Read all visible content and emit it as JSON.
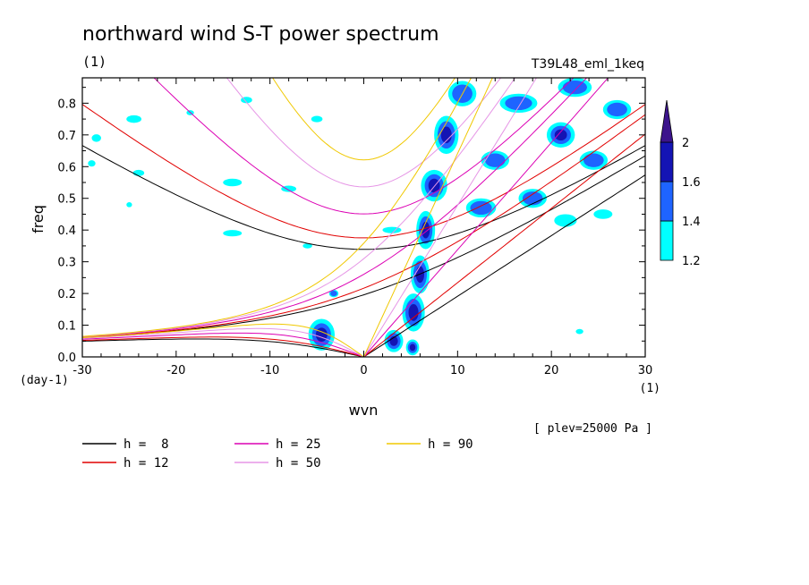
{
  "chart_data": {
    "type": "contour",
    "title": "northward wind S-T power spectrum",
    "subtitle": "(1)",
    "run_label": "T39L48_eml_1keq",
    "xlabel": "wvn",
    "ylabel": "freq",
    "x_unit": "(1)",
    "y_unit": "(day-1)",
    "level_label": "[ plev=25000 Pa ]",
    "xlim": [
      -30,
      30
    ],
    "ylim": [
      0.0,
      0.88
    ],
    "x_ticks": [
      -30,
      -20,
      -10,
      0,
      10,
      20,
      30
    ],
    "x_tick_labels": [
      "-30",
      "-20",
      "-10",
      "0",
      "10",
      "20",
      "30"
    ],
    "y_ticks": [
      0.0,
      0.1,
      0.2,
      0.3,
      0.4,
      0.5,
      0.6,
      0.7,
      0.8
    ],
    "y_tick_labels": [
      "0.0",
      "0.1",
      "0.2",
      "0.3",
      "0.4",
      "0.5",
      "0.6",
      "0.7",
      "0.8"
    ],
    "colorbar": {
      "levels": [
        "1.2",
        "1.4",
        "1.6",
        "2"
      ],
      "colors": [
        "#00ffff",
        "#1e64ff",
        "#1414b4",
        "#3c148c"
      ]
    },
    "dispersion_curves": [
      {
        "label": "h =  8",
        "h": 8,
        "color": "#000000"
      },
      {
        "label": "h = 12",
        "h": 12,
        "color": "#e10000"
      },
      {
        "label": "h = 25",
        "h": 25,
        "color": "#dc00b4"
      },
      {
        "label": "h = 50",
        "h": 50,
        "color": "#e696e6"
      },
      {
        "label": "h = 90",
        "h": 90,
        "color": "#f0c800"
      }
    ],
    "power_blobs": [
      {
        "x": -4.5,
        "y": 0.07,
        "rx": 1.4,
        "ry": 0.05,
        "level": 2
      },
      {
        "x": -3.2,
        "y": 0.2,
        "rx": 0.5,
        "ry": 0.012,
        "level": 1
      },
      {
        "x": 3.2,
        "y": 0.05,
        "rx": 1.0,
        "ry": 0.035,
        "level": 2
      },
      {
        "x": 5.2,
        "y": 0.03,
        "rx": 0.7,
        "ry": 0.025,
        "level": 2
      },
      {
        "x": 5.3,
        "y": 0.14,
        "rx": 1.2,
        "ry": 0.06,
        "level": 2
      },
      {
        "x": 6.0,
        "y": 0.26,
        "rx": 1.0,
        "ry": 0.06,
        "level": 2
      },
      {
        "x": 6.6,
        "y": 0.4,
        "rx": 1.0,
        "ry": 0.06,
        "level": 2
      },
      {
        "x": 7.5,
        "y": 0.54,
        "rx": 1.4,
        "ry": 0.05,
        "level": 2
      },
      {
        "x": 8.8,
        "y": 0.7,
        "rx": 1.3,
        "ry": 0.06,
        "level": 2
      },
      {
        "x": 10.5,
        "y": 0.83,
        "rx": 1.5,
        "ry": 0.04,
        "level": 1
      },
      {
        "x": 12.5,
        "y": 0.47,
        "rx": 1.6,
        "ry": 0.03,
        "level": 1
      },
      {
        "x": 14.0,
        "y": 0.62,
        "rx": 1.5,
        "ry": 0.03,
        "level": 1
      },
      {
        "x": 16.5,
        "y": 0.8,
        "rx": 2.0,
        "ry": 0.03,
        "level": 1
      },
      {
        "x": 18.0,
        "y": 0.5,
        "rx": 1.5,
        "ry": 0.03,
        "level": 1
      },
      {
        "x": 21.0,
        "y": 0.7,
        "rx": 1.5,
        "ry": 0.04,
        "level": 2
      },
      {
        "x": 22.5,
        "y": 0.85,
        "rx": 1.8,
        "ry": 0.03,
        "level": 1
      },
      {
        "x": 24.5,
        "y": 0.62,
        "rx": 1.5,
        "ry": 0.03,
        "level": 1
      },
      {
        "x": 27.0,
        "y": 0.78,
        "rx": 1.5,
        "ry": 0.03,
        "level": 1
      },
      {
        "x": 21.5,
        "y": 0.43,
        "rx": 1.2,
        "ry": 0.02,
        "level": 0
      },
      {
        "x": 25.5,
        "y": 0.45,
        "rx": 1.0,
        "ry": 0.015,
        "level": 0
      },
      {
        "x": -28.5,
        "y": 0.69,
        "rx": 0.5,
        "ry": 0.012,
        "level": 0
      },
      {
        "x": -24.5,
        "y": 0.75,
        "rx": 0.8,
        "ry": 0.012,
        "level": 0
      },
      {
        "x": -24.0,
        "y": 0.58,
        "rx": 0.6,
        "ry": 0.01,
        "level": 0
      },
      {
        "x": -14.0,
        "y": 0.55,
        "rx": 1.0,
        "ry": 0.012,
        "level": 0
      },
      {
        "x": -8.0,
        "y": 0.53,
        "rx": 0.8,
        "ry": 0.01,
        "level": 0
      },
      {
        "x": 3.0,
        "y": 0.4,
        "rx": 1.0,
        "ry": 0.01,
        "level": 0
      },
      {
        "x": -14.0,
        "y": 0.39,
        "rx": 1.0,
        "ry": 0.01,
        "level": 0
      },
      {
        "x": -29.0,
        "y": 0.61,
        "rx": 0.4,
        "ry": 0.01,
        "level": 0
      },
      {
        "x": -25.0,
        "y": 0.48,
        "rx": 0.3,
        "ry": 0.008,
        "level": 0
      },
      {
        "x": -12.5,
        "y": 0.81,
        "rx": 0.6,
        "ry": 0.01,
        "level": 0
      },
      {
        "x": -5.0,
        "y": 0.75,
        "rx": 0.6,
        "ry": 0.01,
        "level": 0
      },
      {
        "x": -18.5,
        "y": 0.77,
        "rx": 0.4,
        "ry": 0.008,
        "level": 0
      },
      {
        "x": -6.0,
        "y": 0.35,
        "rx": 0.5,
        "ry": 0.008,
        "level": 0
      },
      {
        "x": 23.0,
        "y": 0.08,
        "rx": 0.4,
        "ry": 0.008,
        "level": 0
      }
    ]
  }
}
